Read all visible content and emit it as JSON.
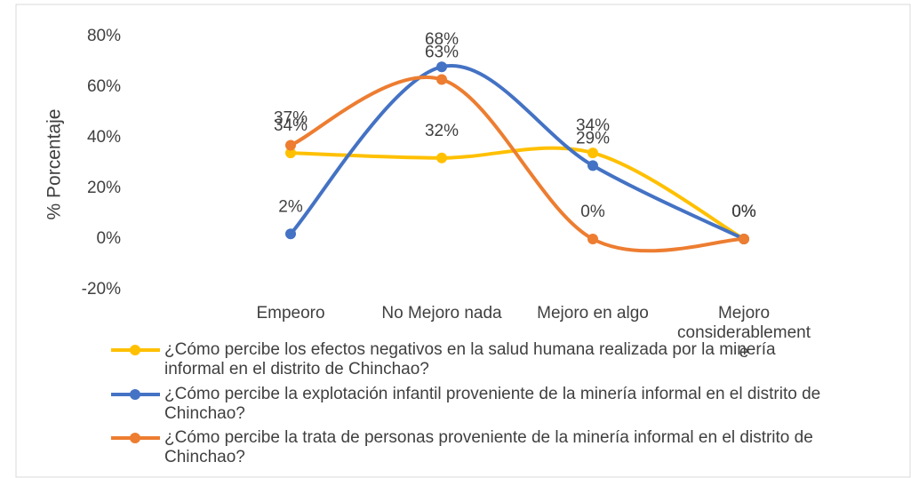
{
  "chart_data": {
    "type": "line",
    "y_label": "% Porcentaje",
    "categories": [
      "Empeoro",
      "No Mejoro nada",
      "Mejoro en algo",
      "Mejoro considerablemente"
    ],
    "series": [
      {
        "name": "¿Cómo percibe los efectos negativos en la salud humana  realizada por la minería informal en el distrito de Chinchao?",
        "color": "#FFC000",
        "values": [
          34,
          32,
          34,
          0
        ],
        "value_labels": [
          "34%",
          "32%",
          "34%",
          "0%"
        ]
      },
      {
        "name": "¿Cómo percibe la explotación infantil proveniente de la minería informal en el distrito de Chinchao?",
        "color": "#4472C4",
        "values": [
          2,
          68,
          29,
          0
        ],
        "value_labels": [
          "2%",
          "68%",
          "29%",
          "0%"
        ]
      },
      {
        "name": "¿Cómo percibe la trata de personas proveniente de la minería informal en el distrito de Chinchao?",
        "color": "#ED7D31",
        "values": [
          37,
          63,
          0,
          0
        ],
        "value_labels": [
          "37%",
          "63%",
          "0%",
          "0%"
        ]
      }
    ],
    "ylim": [
      -20,
      80
    ],
    "yticks": [
      {
        "value": -20,
        "label": "-20%"
      },
      {
        "value": 0,
        "label": "0%"
      },
      {
        "value": 20,
        "label": "20%"
      },
      {
        "value": 40,
        "label": "40%"
      },
      {
        "value": 60,
        "label": "60%"
      },
      {
        "value": 80,
        "label": "80%"
      }
    ],
    "grid": false,
    "smooth": true,
    "legend": "bottom"
  }
}
